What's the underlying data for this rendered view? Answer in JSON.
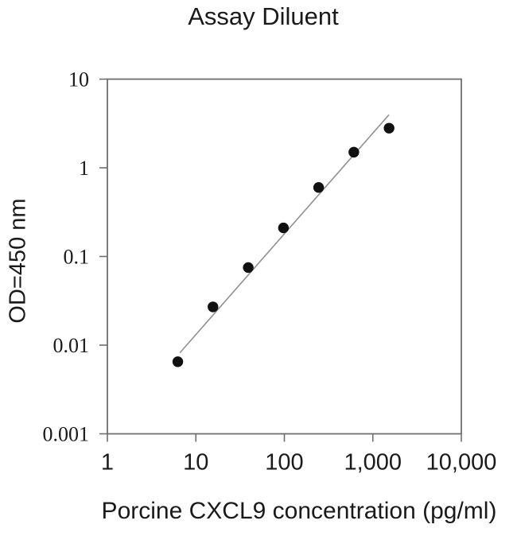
{
  "chart_data": {
    "type": "scatter",
    "title": "Assay Diluent",
    "xlabel": "Porcine CXCL9 concentration (pg/ml)",
    "ylabel": "OD=450 nm",
    "x_scale": "log",
    "y_scale": "log",
    "xlim": [
      1,
      10000
    ],
    "ylim": [
      0.001,
      10
    ],
    "grid": false,
    "legend": "none",
    "x_ticks": {
      "values": [
        1,
        10,
        100,
        1000,
        10000
      ],
      "labels": [
        "1",
        "10",
        "100",
        "1,000",
        "10,000"
      ]
    },
    "y_ticks": {
      "values": [
        10,
        1,
        0.1,
        0.01,
        0.001
      ],
      "labels": [
        "10",
        "1",
        "0.1",
        "0.01",
        "0.001"
      ]
    },
    "series": [
      {
        "name": "standard-curve-points",
        "marker": "filled-circle",
        "points": [
          {
            "x": 6.25,
            "y": 0.0065
          },
          {
            "x": 15.6,
            "y": 0.027
          },
          {
            "x": 39.1,
            "y": 0.075
          },
          {
            "x": 97.7,
            "y": 0.21
          },
          {
            "x": 244,
            "y": 0.6
          },
          {
            "x": 610,
            "y": 1.5
          },
          {
            "x": 1526,
            "y": 2.8
          }
        ]
      }
    ],
    "fit_line": {
      "x1": 6.6,
      "y1": 0.0082,
      "x2": 1520,
      "y2": 3.96
    },
    "colors": {
      "point": "#111111",
      "fit_line": "#8f8f8f",
      "axis": "#6e6e6e",
      "text": "#1a1a1a",
      "background": "#ffffff"
    }
  }
}
